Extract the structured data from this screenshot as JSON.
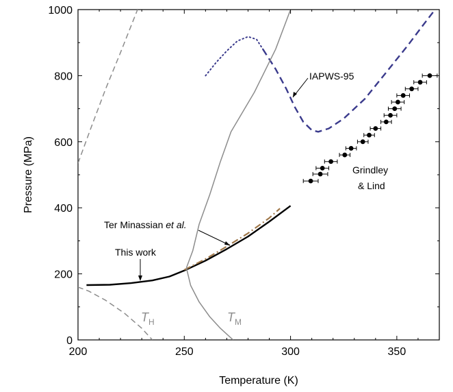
{
  "chart_data": {
    "type": "line",
    "xlabel": "Temperature (K)",
    "ylabel": "Pressure (MPa)",
    "xlim": [
      200,
      370
    ],
    "ylim": [
      0,
      1000
    ],
    "xticks": [
      200,
      250,
      300,
      350
    ],
    "yticks": [
      0,
      200,
      400,
      600,
      800,
      1000
    ],
    "grid": false,
    "colors": {
      "this_work": "#000000",
      "ter_minassian": "#a0784a",
      "iapws": "#3a3a8c",
      "grey_line": "#8c8c8c",
      "points": "#000000"
    },
    "series": [
      {
        "name": "This work",
        "style": "solid",
        "points": [
          [
            204,
            166
          ],
          [
            215,
            167
          ],
          [
            225,
            172
          ],
          [
            235,
            180
          ],
          [
            243,
            192
          ],
          [
            250,
            210
          ],
          [
            260,
            240
          ],
          [
            270,
            275
          ],
          [
            280,
            313
          ],
          [
            290,
            358
          ],
          [
            300,
            406
          ]
        ]
      },
      {
        "name": "Ter Minassian et al.",
        "style": "dash-dot",
        "points": [
          [
            250,
            212
          ],
          [
            260,
            245
          ],
          [
            270,
            283
          ],
          [
            280,
            323
          ],
          [
            290,
            369
          ],
          [
            295,
            398
          ]
        ]
      },
      {
        "name": "IAPWS-95",
        "style": "dashed",
        "points": [
          [
            287,
            880
          ],
          [
            293,
            820
          ],
          [
            298,
            760
          ],
          [
            302,
            705
          ],
          [
            306,
            660
          ],
          [
            310,
            635
          ],
          [
            313,
            630
          ],
          [
            318,
            640
          ],
          [
            325,
            670
          ],
          [
            335,
            730
          ],
          [
            345,
            810
          ],
          [
            355,
            890
          ],
          [
            362,
            950
          ],
          [
            368,
            1000
          ]
        ]
      },
      {
        "name": "IAPWS-95 extrapolation",
        "style": "dotted",
        "points": [
          [
            260,
            800
          ],
          [
            265,
            840
          ],
          [
            270,
            875
          ],
          [
            275,
            905
          ],
          [
            280,
            918
          ],
          [
            284,
            910
          ],
          [
            287,
            880
          ]
        ]
      },
      {
        "name": "T_M",
        "style": "solid-grey",
        "points": [
          [
            251,
            218
          ],
          [
            253,
            165
          ],
          [
            257,
            115
          ],
          [
            262,
            70
          ],
          [
            267,
            35
          ],
          [
            273,
            0
          ]
        ]
      },
      {
        "name": "T_M upper",
        "style": "solid-grey",
        "points": [
          [
            251,
            218
          ],
          [
            254,
            270
          ],
          [
            257,
            350
          ],
          [
            262,
            440
          ],
          [
            267,
            540
          ],
          [
            272,
            630
          ],
          [
            283,
            750
          ],
          [
            293,
            880
          ],
          [
            300,
            1000
          ]
        ]
      },
      {
        "name": "T_H",
        "style": "dashed-grey",
        "points": [
          [
            200,
            160
          ],
          [
            205,
            148
          ],
          [
            213,
            120
          ],
          [
            222,
            80
          ],
          [
            230,
            35
          ],
          [
            235,
            0
          ]
        ]
      },
      {
        "name": "upper grey dashed",
        "style": "dashed-grey",
        "points": [
          [
            200,
            535
          ],
          [
            206,
            640
          ],
          [
            213,
            760
          ],
          [
            220,
            870
          ],
          [
            228,
            1000
          ]
        ]
      },
      {
        "name": "Grindley & Lind",
        "style": "points",
        "points": [
          {
            "x": 309.5,
            "y": 481,
            "xerr": 3.5
          },
          {
            "x": 314,
            "y": 502,
            "xerr": 3.5
          },
          {
            "x": 315,
            "y": 520,
            "xerr": 3.0
          },
          {
            "x": 319,
            "y": 540,
            "xerr": 3.0
          },
          {
            "x": 325.5,
            "y": 560,
            "xerr": 2.5
          },
          {
            "x": 328.5,
            "y": 580,
            "xerr": 2.5
          },
          {
            "x": 334,
            "y": 600,
            "xerr": 2.5
          },
          {
            "x": 337,
            "y": 620,
            "xerr": 2.5
          },
          {
            "x": 340,
            "y": 640,
            "xerr": 2.5
          },
          {
            "x": 345,
            "y": 660,
            "xerr": 2.5
          },
          {
            "x": 347,
            "y": 680,
            "xerr": 3.0
          },
          {
            "x": 349,
            "y": 700,
            "xerr": 3.0
          },
          {
            "x": 350.5,
            "y": 720,
            "xerr": 3.0
          },
          {
            "x": 353,
            "y": 740,
            "xerr": 3.0
          },
          {
            "x": 357,
            "y": 760,
            "xerr": 3.0
          },
          {
            "x": 361,
            "y": 780,
            "xerr": 3.0
          },
          {
            "x": 365.5,
            "y": 800,
            "xerr": 3.5
          }
        ]
      }
    ],
    "annotations": {
      "iapws": "IAPWS-95",
      "grindley_line1": "Grindley",
      "grindley_line2": "& Lind",
      "ter_prefix": "Ter Minassian ",
      "ter_italic": "et al.",
      "this_work": "This work",
      "th_letter": "T",
      "th_sub": "H",
      "tm_letter": "T",
      "tm_sub": "M"
    }
  }
}
